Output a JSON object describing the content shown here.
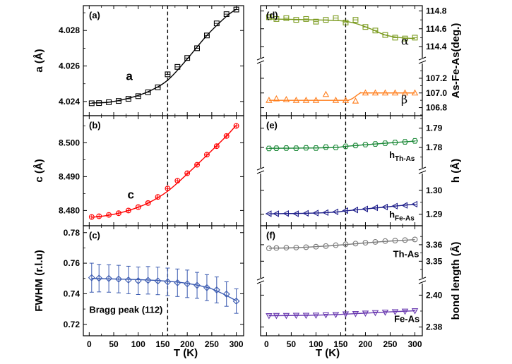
{
  "chart_data": {
    "type": "scatter",
    "x_axis_label": "T (K)",
    "x_ticks": [
      0,
      50,
      100,
      150,
      200,
      250,
      300
    ],
    "xlim": [
      -12,
      315
    ],
    "transition_T": 160,
    "panels": [
      {
        "id": "a",
        "label": "(a)",
        "ylabel": "a (Å)",
        "side": "left",
        "ylim": [
          4.0232,
          4.0294
        ],
        "yticks": [
          4.024,
          4.026,
          4.028
        ],
        "yticklabels": [
          "4.024",
          "4.026",
          "4.028"
        ],
        "annotations": [
          {
            "text": "a",
            "x": 75,
            "y": 4.0252,
            "style": "large"
          }
        ],
        "series": [
          {
            "name": "a",
            "color": "#000000",
            "marker": "square",
            "x": [
              5,
              20,
              40,
              60,
              80,
              100,
              120,
              140,
              160,
              180,
              200,
              220,
              240,
              260,
              280,
              300
            ],
            "y": [
              4.0239,
              4.02391,
              4.02396,
              4.02403,
              4.02415,
              4.0243,
              4.02452,
              4.0248,
              4.02553,
              4.02595,
              4.02645,
              4.027,
              4.02772,
              4.0284,
              4.02892,
              4.02918
            ],
            "fit_x": [
              5,
              40,
              80,
              120,
              160,
              200,
              240,
              280,
              300
            ],
            "fit_y": [
              4.02392,
              4.02396,
              4.02418,
              4.02455,
              4.0252,
              4.0264,
              4.02772,
              4.0288,
              4.0292
            ]
          }
        ]
      },
      {
        "id": "b",
        "label": "(b)",
        "ylabel": "c (Å)",
        "side": "left",
        "ylim": [
          8.4755,
          8.508
        ],
        "yticks": [
          8.48,
          8.49,
          8.5
        ],
        "yticklabels": [
          "8.480",
          "8.490",
          "8.500"
        ],
        "annotations": [
          {
            "text": "c",
            "x": 78,
            "y": 8.4835,
            "style": "large"
          }
        ],
        "series": [
          {
            "name": "c",
            "color": "#ff0000",
            "marker": "circle-plus",
            "x": [
              5,
              20,
              40,
              60,
              80,
              100,
              120,
              140,
              160,
              180,
              200,
              220,
              240,
              260,
              280,
              300
            ],
            "y": [
              8.4781,
              8.4783,
              8.4787,
              8.4792,
              8.48,
              8.481,
              8.4822,
              8.484,
              8.4865,
              8.4888,
              8.491,
              8.4935,
              8.4965,
              8.499,
              8.502,
              8.505
            ],
            "fit_x": [
              5,
              40,
              80,
              120,
              160,
              200,
              240,
              280,
              300
            ],
            "fit_y": [
              8.478,
              8.4786,
              8.48,
              8.4822,
              8.4857,
              8.4908,
              8.4963,
              8.502,
              8.5052
            ]
          }
        ]
      },
      {
        "id": "c",
        "label": "(c)",
        "ylabel": "FWHM (r.l.u)",
        "side": "left",
        "ylim": [
          0.7125,
          0.7845
        ],
        "yticks": [
          0.72,
          0.74,
          0.76,
          0.78
        ],
        "yticklabels": [
          "0.72",
          "0.74",
          "0.76",
          "0.78"
        ],
        "annotations": [
          {
            "text": "Bragg peak (112)",
            "x": 0,
            "y": 0.7275,
            "style": "bold"
          }
        ],
        "series": [
          {
            "name": "FWHM",
            "color": "#3a5ab0",
            "marker": "diamond",
            "x": [
              5,
              20,
              40,
              60,
              80,
              100,
              120,
              140,
              160,
              180,
              200,
              220,
              240,
              260,
              280,
              300
            ],
            "y": [
              0.7505,
              0.7502,
              0.75,
              0.7496,
              0.749,
              0.7485,
              0.7488,
              0.7484,
              0.7478,
              0.7472,
              0.7465,
              0.7455,
              0.744,
              0.7425,
              0.7398,
              0.7352
            ],
            "err": [
              0.0095,
              0.009,
              0.009,
              0.009,
              0.009,
              0.009,
              0.009,
              0.009,
              0.009,
              0.009,
              0.009,
              0.0085,
              0.0085,
              0.0085,
              0.008,
              0.008
            ],
            "fit_x": [
              5,
              60,
              120,
              160,
              200,
              250,
              300
            ],
            "fit_y": [
              0.75,
              0.7496,
              0.749,
              0.7482,
              0.7468,
              0.7432,
              0.7355
            ]
          }
        ]
      },
      {
        "id": "d",
        "label": "(d)",
        "ylabel": "As-Fe-As(deg.)",
        "side": "right",
        "broken_axis": true,
        "sub_axes": [
          {
            "ylim": [
              114.34,
              114.86
            ],
            "yticks": [
              114.4,
              114.6,
              114.8
            ],
            "yticklabels": [
              "114.4",
              "114.6",
              "114.8"
            ]
          },
          {
            "ylim": [
              106.69,
              107.32
            ],
            "yticks": [
              106.8,
              107.0,
              107.2
            ],
            "yticklabels": [
              "106.8",
              "107.0",
              "107.2"
            ]
          }
        ],
        "annotations": [
          {
            "text": "α",
            "x": 272,
            "y": 114.42,
            "sub": 0,
            "style": "greek"
          },
          {
            "text": "β",
            "x": 272,
            "y": 106.86,
            "sub": 1,
            "style": "greek"
          }
        ],
        "series": [
          {
            "name": "α",
            "color": "#7a9a1e",
            "marker": "square-dash",
            "sub": 0,
            "x": [
              5,
              20,
              40,
              60,
              80,
              100,
              120,
              140,
              160,
              180,
              200,
              220,
              240,
              260,
              280,
              300
            ],
            "y": [
              114.73,
              114.71,
              114.72,
              114.7,
              114.71,
              114.68,
              114.7,
              114.72,
              114.67,
              114.7,
              114.62,
              114.58,
              114.53,
              114.5,
              114.49,
              114.5
            ],
            "fit_x": [
              5,
              100,
              150,
              180,
              210,
              240,
              270,
              300
            ],
            "fit_y": [
              114.71,
              114.7,
              114.69,
              114.66,
              114.6,
              114.53,
              114.5,
              114.49
            ]
          },
          {
            "name": "β",
            "color": "#ff7f1e",
            "marker": "triangle-up",
            "sub": 1,
            "x": [
              5,
              20,
              40,
              60,
              80,
              100,
              120,
              140,
              160,
              180,
              200,
              220,
              240,
              260,
              280,
              300
            ],
            "y": [
              106.9,
              106.92,
              106.91,
              106.9,
              106.9,
              106.9,
              106.98,
              106.9,
              106.9,
              106.89,
              107.0,
              107.0,
              107.0,
              107.0,
              107.0,
              107.0
            ],
            "fit_x": [
              5,
              150,
              165,
              175,
              190,
              200,
              300
            ],
            "fit_y": [
              106.9,
              106.9,
              106.9,
              106.93,
              107.0,
              107.0,
              107.0
            ]
          }
        ]
      },
      {
        "id": "e",
        "label": "(e)",
        "ylabel": "h (Å)",
        "side": "right",
        "broken_axis": true,
        "sub_axes": [
          {
            "ylim": [
              1.7725,
              1.7965
            ],
            "yticks": [
              1.78,
              1.79
            ],
            "yticklabels": [
              "1.78",
              "1.79"
            ]
          },
          {
            "ylim": [
              1.2852,
              1.3045
            ],
            "yticks": [
              1.29,
              1.3
            ],
            "yticklabels": [
              "1.29",
              "1.30"
            ]
          }
        ],
        "annotations": [
          {
            "text": "h",
            "sub_text": "Th-As",
            "x": 248,
            "y": 1.7745,
            "sub": 0,
            "style": "bold"
          },
          {
            "text": "h",
            "sub_text": "Fe-As",
            "x": 248,
            "y": 1.2886,
            "sub": 1,
            "style": "bold"
          }
        ],
        "series": [
          {
            "name": "h Th-As",
            "color": "#1e8a3a",
            "marker": "hexagon",
            "sub": 0,
            "x": [
              5,
              20,
              40,
              60,
              80,
              100,
              120,
              140,
              160,
              180,
              200,
              220,
              240,
              260,
              280,
              300
            ],
            "y": [
              1.7795,
              1.7796,
              1.7797,
              1.7796,
              1.7798,
              1.7797,
              1.7802,
              1.78,
              1.7806,
              1.781,
              1.7815,
              1.7818,
              1.7822,
              1.7826,
              1.7829,
              1.7834
            ],
            "fit_x": [
              5,
              80,
              140,
              160,
              200,
              250,
              300
            ],
            "fit_y": [
              1.7796,
              1.7797,
              1.78,
              1.7806,
              1.7814,
              1.7824,
              1.7833
            ]
          },
          {
            "name": "h Fe-As",
            "color": "#1e1e8a",
            "marker": "triangle-left",
            "sub": 1,
            "x": [
              5,
              20,
              40,
              60,
              80,
              100,
              120,
              140,
              160,
              180,
              200,
              220,
              240,
              260,
              280,
              300
            ],
            "y": [
              1.2902,
              1.2902,
              1.2903,
              1.2902,
              1.2904,
              1.2905,
              1.2907,
              1.291,
              1.2915,
              1.2918,
              1.2922,
              1.2927,
              1.293,
              1.2934,
              1.2937,
              1.2942
            ],
            "fit_x": [
              5,
              80,
              140,
              160,
              200,
              250,
              300
            ],
            "fit_y": [
              1.2902,
              1.2904,
              1.2909,
              1.2914,
              1.2922,
              1.2932,
              1.2942
            ]
          }
        ]
      },
      {
        "id": "f",
        "label": "(f)",
        "ylabel": "bond length (Å)",
        "side": "right",
        "broken_axis": true,
        "sub_axes": [
          {
            "ylim": [
              3.3435,
              3.3715
            ],
            "yticks": [
              3.35,
              3.36
            ],
            "yticklabels": [
              "3.35",
              "3.36"
            ]
          },
          {
            "ylim": [
              2.3745,
              2.4035
            ],
            "yticks": [
              2.38,
              2.4
            ],
            "yticklabels": [
              "2.38",
              "2.40"
            ]
          }
        ],
        "annotations": [
          {
            "text": "Th-As",
            "x": 256,
            "y": 3.3525,
            "sub": 0,
            "style": "bold"
          },
          {
            "text": "Fe-As",
            "x": 258,
            "y": 2.3832,
            "sub": 1,
            "style": "bold"
          }
        ],
        "series": [
          {
            "name": "Th-As",
            "color": "#7a7a7a",
            "marker": "circle",
            "sub": 0,
            "x": [
              5,
              20,
              40,
              60,
              80,
              100,
              120,
              140,
              160,
              180,
              200,
              220,
              240,
              260,
              280,
              300
            ],
            "y": [
              3.3578,
              3.358,
              3.3582,
              3.3583,
              3.3585,
              3.3588,
              3.3592,
              3.3597,
              3.3603,
              3.3607,
              3.3612,
              3.3617,
              3.3622,
              3.3625,
              3.3628,
              3.3632
            ],
            "fit_x": [
              5,
              60,
              120,
              160,
              200,
              250,
              300
            ],
            "fit_y": [
              3.3579,
              3.3582,
              3.3592,
              3.3601,
              3.3611,
              3.3622,
              3.3631
            ]
          },
          {
            "name": "Fe-As",
            "color": "#6a3ab0",
            "marker": "triangle-down",
            "sub": 1,
            "x": [
              5,
              20,
              40,
              60,
              80,
              100,
              120,
              140,
              160,
              180,
              200,
              220,
              240,
              260,
              280,
              300
            ],
            "y": [
              2.3871,
              2.3872,
              2.3872,
              2.3873,
              2.3873,
              2.3874,
              2.3876,
              2.3878,
              2.3882,
              2.3884,
              2.3887,
              2.389,
              2.3893,
              2.3896,
              2.3899,
              2.3902
            ],
            "fit_x": [
              5,
              80,
              140,
              160,
              200,
              250,
              300
            ],
            "fit_y": [
              2.3871,
              2.3873,
              2.3878,
              2.3881,
              2.3887,
              2.3895,
              2.3902
            ]
          }
        ]
      }
    ]
  }
}
